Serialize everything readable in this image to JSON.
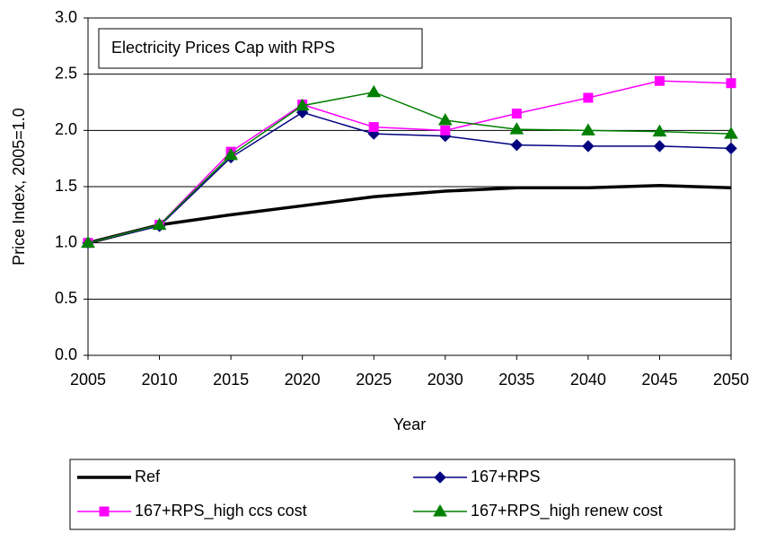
{
  "chart_data": {
    "type": "line",
    "annotation": "Electricity Prices Cap with RPS",
    "x_label": "Year",
    "y_label": "Price Index, 2005=1.0",
    "x": [
      2005,
      2010,
      2015,
      2020,
      2025,
      2030,
      2035,
      2040,
      2045,
      2050
    ],
    "xlim": [
      2005,
      2050
    ],
    "xticks": [
      2005,
      2010,
      2015,
      2020,
      2025,
      2030,
      2035,
      2040,
      2045,
      2050
    ],
    "ylim": [
      0,
      3
    ],
    "yticks": [
      {
        "value": 0,
        "label": "0.0"
      },
      {
        "value": 0.5,
        "label": "0.5"
      },
      {
        "value": 1,
        "label": "1.0"
      },
      {
        "value": 1.5,
        "label": "1.5"
      },
      {
        "value": 2,
        "label": "2.0"
      },
      {
        "value": 2.5,
        "label": "2.5"
      },
      {
        "value": 3,
        "label": "3.0"
      }
    ],
    "grid": true,
    "series": [
      {
        "name": "Ref",
        "color": "#000000",
        "values": [
          1.0,
          1.16,
          1.25,
          1.33,
          1.41,
          1.46,
          1.49,
          1.49,
          1.51,
          1.49
        ]
      },
      {
        "name": "167+RPS",
        "color": "#000080",
        "marker": "diamond",
        "values": [
          1.0,
          1.15,
          1.76,
          2.16,
          1.97,
          1.95,
          1.87,
          1.86,
          1.86,
          1.84
        ]
      },
      {
        "name": "167+RPS_high ccs cost",
        "color": "#ff00ff",
        "marker": "square",
        "values": [
          1.0,
          1.16,
          1.81,
          2.23,
          2.03,
          2.0,
          2.15,
          2.29,
          2.44,
          2.42
        ]
      },
      {
        "name": "167+RPS_high renew cost",
        "color": "#008000",
        "marker": "triangle",
        "values": [
          1.0,
          1.16,
          1.78,
          2.22,
          2.34,
          2.09,
          2.01,
          2.0,
          1.99,
          1.97
        ]
      }
    ]
  }
}
